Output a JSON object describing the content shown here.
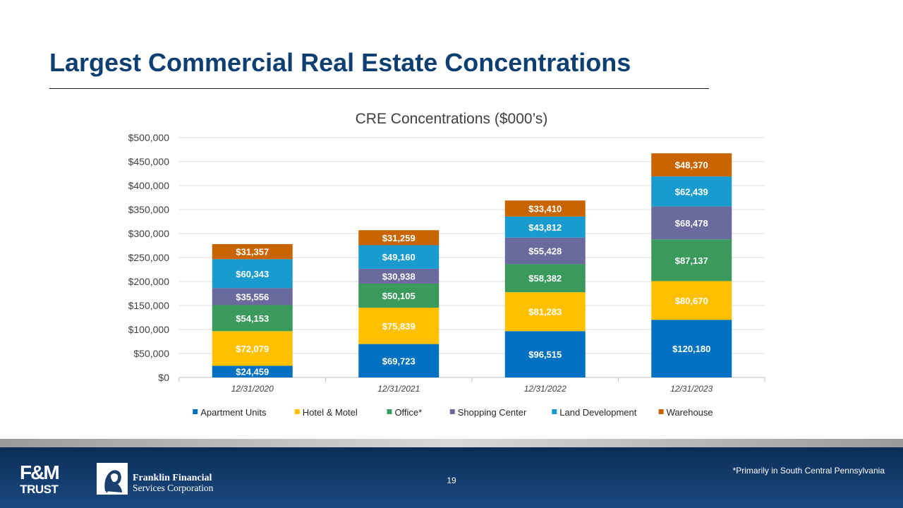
{
  "slide": {
    "title": "Largest Commercial Real Estate Concentrations",
    "page_number": "19",
    "footnote": "*Primarily in South Central Pennsylvania",
    "logo_fm_top": "F&M",
    "logo_fm_bottom": "TRUST",
    "logo_company_line1": "Franklin Financial",
    "logo_company_line2": "Services Corporation"
  },
  "colors": {
    "title": "#0d3f73",
    "footer": "#133d6e",
    "series": [
      "#0070c0",
      "#ffc000",
      "#3a9a5b",
      "#6b6a9e",
      "#1a9bd0",
      "#c96500"
    ]
  },
  "chart_data": {
    "type": "bar",
    "stacked": true,
    "title": "CRE Concentrations ($000’s)",
    "xlabel": "",
    "ylabel": "",
    "ylim": [
      0,
      500000
    ],
    "ytick_step": 50000,
    "grid": true,
    "legend_position": "bottom",
    "categories": [
      "12/31/2020",
      "12/31/2021",
      "12/31/2022",
      "12/31/2023"
    ],
    "y_tick_labels": [
      "$0",
      "$50,000",
      "$100,000",
      "$150,000",
      "$200,000",
      "$250,000",
      "$300,000",
      "$350,000",
      "$400,000",
      "$450,000",
      "$500,000"
    ],
    "series": [
      {
        "name": "Apartment Units",
        "values": [
          24459,
          69723,
          96515,
          120180
        ],
        "labels": [
          "$24,459",
          "$69,723",
          "$96,515",
          "$120,180"
        ]
      },
      {
        "name": "Hotel & Motel",
        "values": [
          72079,
          75839,
          81283,
          80670
        ],
        "labels": [
          "$72,079",
          "$75,839",
          "$81,283",
          "$80,670"
        ]
      },
      {
        "name": "Office*",
        "values": [
          54153,
          50105,
          58382,
          87137
        ],
        "labels": [
          "$54,153",
          "$50,105",
          "$58,382",
          "$87,137"
        ]
      },
      {
        "name": "Shopping Center",
        "values": [
          35556,
          30938,
          55428,
          68478
        ],
        "labels": [
          "$35,556",
          "$30,938",
          "$55,428",
          "$68,478"
        ]
      },
      {
        "name": "Land Development",
        "values": [
          60343,
          49160,
          43812,
          62439
        ],
        "labels": [
          "$60,343",
          "$49,160",
          "$43,812",
          "$62,439"
        ]
      },
      {
        "name": "Warehouse",
        "values": [
          31357,
          31259,
          33410,
          48370
        ],
        "labels": [
          "$31,357",
          "$31,259",
          "$33,410",
          "$48,370"
        ]
      }
    ]
  }
}
